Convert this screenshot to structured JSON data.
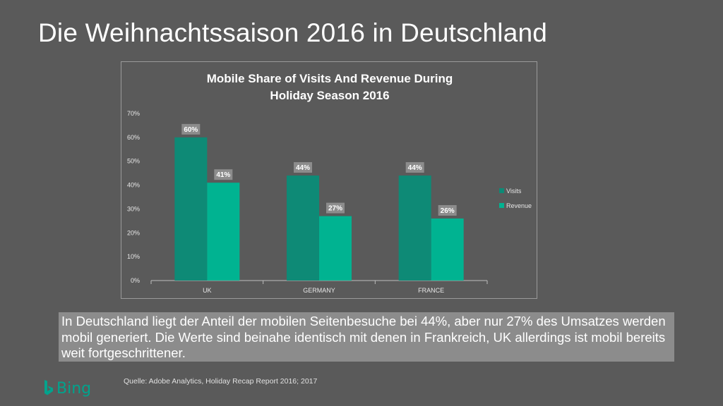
{
  "slide": {
    "title": "Die Weihnachtssaison 2016 in Deutschland",
    "body": "In Deutschland liegt der Anteil der mobilen Seitenbesuche bei 44%, aber nur 27% des Umsatzes werden mobil generiert. Die Werte sind beinahe identisch mit denen in Frankreich, UK allerdings ist mobil bereits weit fortgeschrittener.",
    "source": "Quelle: Adobe Analytics, Holiday Recap Report 2016; 2017",
    "logo_text": "Bing",
    "logo_icon": "bing-b-icon"
  },
  "colors": {
    "background": "#5a5a5a",
    "visits": "#0e8a76",
    "revenue": "#00b391",
    "label_bg": "#8c8c8c",
    "axis_text": "#e6e6e6",
    "brand": "#00a38d"
  },
  "chart_data": {
    "type": "bar",
    "title_lines": [
      "Mobile Share of Visits And Revenue During",
      "Holiday Season 2016"
    ],
    "categories": [
      "UK",
      "GERMANY",
      "FRANCE"
    ],
    "series": [
      {
        "name": "Visits",
        "values": [
          60,
          44,
          44
        ],
        "labels": [
          "60%",
          "44%",
          "44%"
        ]
      },
      {
        "name": "Revenue",
        "values": [
          41,
          27,
          26
        ],
        "labels": [
          "41%",
          "27%",
          "26%"
        ]
      }
    ],
    "y_ticks": [
      "0%",
      "10%",
      "20%",
      "30%",
      "40%",
      "50%",
      "60%",
      "70%"
    ],
    "ylim": [
      0,
      70
    ],
    "y_step": 10,
    "legend_position": "right",
    "grid": false
  }
}
